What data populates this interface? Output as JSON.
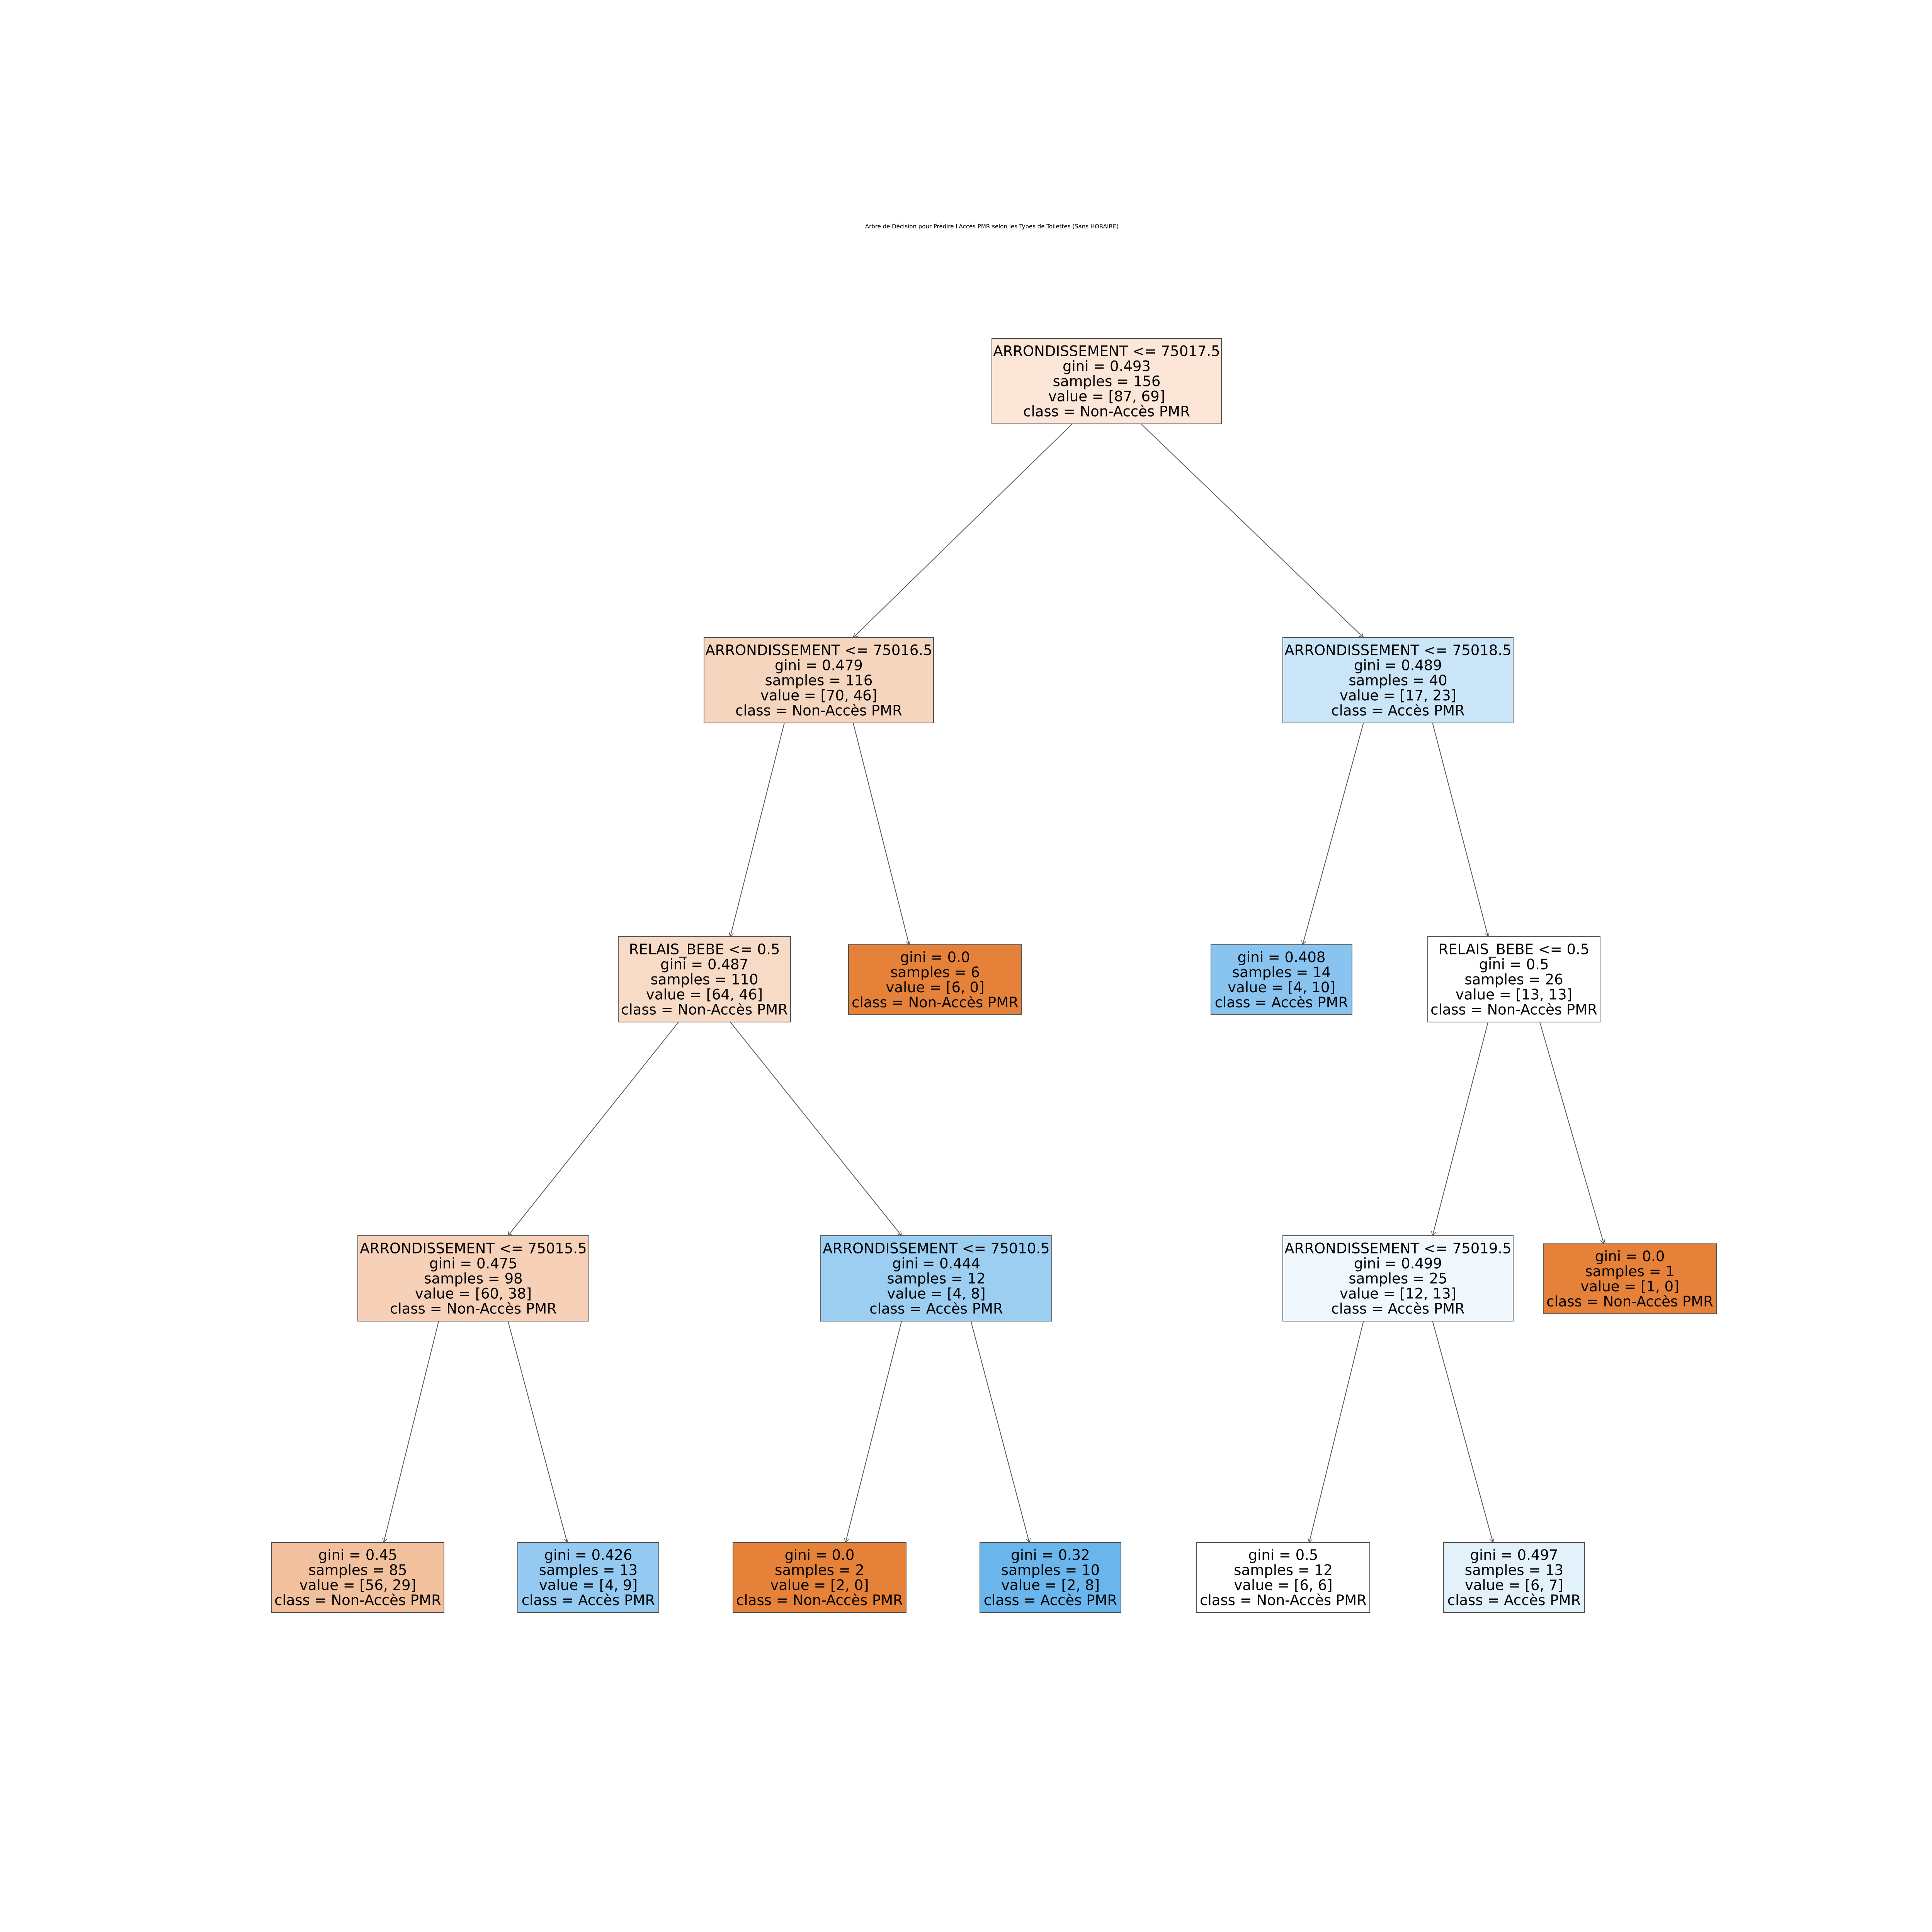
{
  "title": "Arbre de Décision pour Prédire l'Accès PMR selon les Types de Toilettes (Sans HORAIRE)",
  "colors": {
    "class_non_acces": "#e58139",
    "class_acces": "#399de5",
    "edge": "#5a5a5a",
    "text": "#000000"
  },
  "nodes": [
    {
      "id": "n0",
      "fill": "#fbe6d8",
      "lines": [
        "ARRONDISSEMENT <= 75017.5",
        "gini = 0.493",
        "samples = 156",
        "value = [87, 69]",
        "class = Non-Accès PMR"
      ]
    },
    {
      "id": "n1",
      "fill": "#f6d5be",
      "lines": [
        "ARRONDISSEMENT <= 75016.5",
        "gini = 0.479",
        "samples = 116",
        "value = [70, 46]",
        "class = Non-Accès PMR"
      ]
    },
    {
      "id": "n2",
      "fill": "#f8dbc7",
      "lines": [
        "RELAIS_BEBE <= 0.5",
        "gini = 0.487",
        "samples = 110",
        "value = [64, 46]",
        "class = Non-Accès PMR"
      ]
    },
    {
      "id": "n3",
      "fill": "#f6d1b7",
      "lines": [
        "ARRONDISSEMENT <= 75015.5",
        "gini = 0.475",
        "samples = 98",
        "value = [60, 38]",
        "class = Non-Accès PMR"
      ]
    },
    {
      "id": "n4",
      "fill": "#f2c09c",
      "lines": [
        "gini = 0.45",
        "samples = 85",
        "value = [56, 29]",
        "class = Non-Accès PMR"
      ]
    },
    {
      "id": "n5",
      "fill": "#94caf1",
      "lines": [
        "gini = 0.426",
        "samples = 13",
        "value = [4, 9]",
        "class = Accès PMR"
      ]
    },
    {
      "id": "n6",
      "fill": "#9ccef2",
      "lines": [
        "ARRONDISSEMENT <= 75010.5",
        "gini = 0.444",
        "samples = 12",
        "value = [4, 8]",
        "class = Accès PMR"
      ]
    },
    {
      "id": "n7",
      "fill": "#e58139",
      "lines": [
        "gini = 0.0",
        "samples = 2",
        "value = [2, 0]",
        "class = Non-Accès PMR"
      ]
    },
    {
      "id": "n8",
      "fill": "#6ab6ec",
      "lines": [
        "gini = 0.32",
        "samples = 10",
        "value = [2, 8]",
        "class = Accès PMR"
      ]
    },
    {
      "id": "n9",
      "fill": "#e58139",
      "lines": [
        "gini = 0.0",
        "samples = 6",
        "value = [6, 0]",
        "class = Non-Accès PMR"
      ]
    },
    {
      "id": "n10",
      "fill": "#cbe5f8",
      "lines": [
        "ARRONDISSEMENT <= 75018.5",
        "gini = 0.489",
        "samples = 40",
        "value = [17, 23]",
        "class = Accès PMR"
      ]
    },
    {
      "id": "n11",
      "fill": "#88c4ef",
      "lines": [
        "gini = 0.408",
        "samples = 14",
        "value = [4, 10]",
        "class = Accès PMR"
      ]
    },
    {
      "id": "n12",
      "fill": "#ffffff",
      "lines": [
        "RELAIS_BEBE <= 0.5",
        "gini = 0.5",
        "samples = 26",
        "value = [13, 13]",
        "class = Non-Accès PMR"
      ]
    },
    {
      "id": "n13",
      "fill": "#f0f7fd",
      "lines": [
        "ARRONDISSEMENT <= 75019.5",
        "gini = 0.499",
        "samples = 25",
        "value = [12, 13]",
        "class = Accès PMR"
      ]
    },
    {
      "id": "n14",
      "fill": "#ffffff",
      "lines": [
        "gini = 0.5",
        "samples = 12",
        "value = [6, 6]",
        "class = Non-Accès PMR"
      ]
    },
    {
      "id": "n15",
      "fill": "#e3f1fb",
      "lines": [
        "gini = 0.497",
        "samples = 13",
        "value = [6, 7]",
        "class = Accès PMR"
      ]
    },
    {
      "id": "n16",
      "fill": "#e58139",
      "lines": [
        "gini = 0.0",
        "samples = 1",
        "value = [1, 0]",
        "class = Non-Accès PMR"
      ]
    }
  ],
  "edges": [
    [
      "n0",
      "n1"
    ],
    [
      "n0",
      "n10"
    ],
    [
      "n1",
      "n2"
    ],
    [
      "n1",
      "n9"
    ],
    [
      "n2",
      "n3"
    ],
    [
      "n2",
      "n6"
    ],
    [
      "n3",
      "n4"
    ],
    [
      "n3",
      "n5"
    ],
    [
      "n6",
      "n7"
    ],
    [
      "n6",
      "n8"
    ],
    [
      "n10",
      "n11"
    ],
    [
      "n10",
      "n12"
    ],
    [
      "n12",
      "n13"
    ],
    [
      "n12",
      "n16"
    ],
    [
      "n13",
      "n14"
    ],
    [
      "n13",
      "n15"
    ]
  ]
}
